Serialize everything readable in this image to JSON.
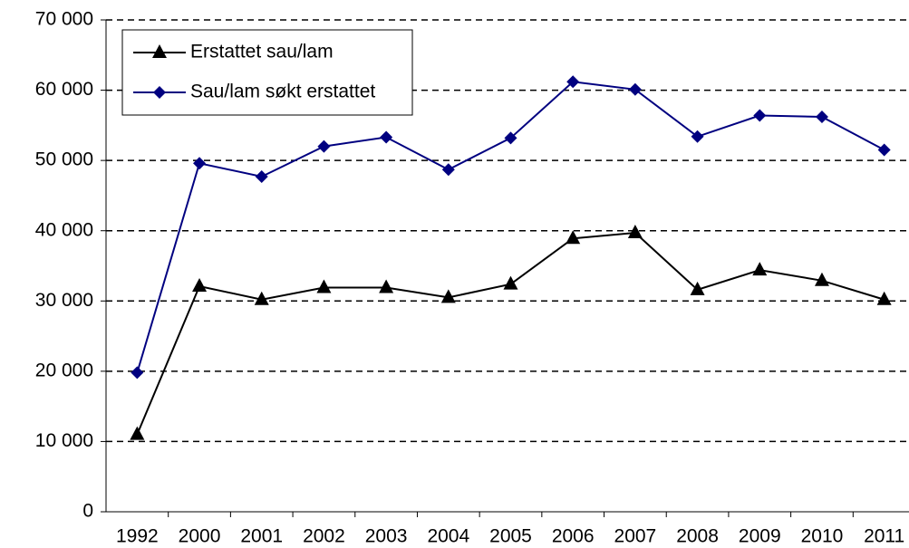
{
  "chart_data": {
    "type": "line",
    "categories": [
      "1992",
      "2000",
      "2001",
      "2002",
      "2003",
      "2004",
      "2005",
      "2006",
      "2007",
      "2008",
      "2009",
      "2010",
      "2011"
    ],
    "series": [
      {
        "name": "Erstattet sau/lam",
        "color": "#000000",
        "marker": "triangle",
        "values": [
          11000,
          32100,
          30200,
          31900,
          31900,
          30500,
          32400,
          38900,
          39700,
          31600,
          34400,
          32900,
          30200
        ]
      },
      {
        "name": "Sau/lam søkt erstattet",
        "color": "#000080",
        "marker": "diamond",
        "values": [
          19800,
          49600,
          47700,
          52000,
          53300,
          48700,
          53200,
          61200,
          60100,
          53400,
          56400,
          56200,
          51500
        ]
      }
    ],
    "ylim": [
      0,
      70000
    ],
    "yticks": [
      0,
      {
        "value": 10000,
        "label": "10 000"
      },
      {
        "value": 20000,
        "label": "20 000"
      },
      {
        "value": 30000,
        "label": "30 000"
      },
      {
        "value": 40000,
        "label": "40 000"
      },
      {
        "value": 50000,
        "label": "50 000"
      },
      {
        "value": 60000,
        "label": "60 000"
      },
      {
        "value": 70000,
        "label": "70 000"
      }
    ],
    "grid": true,
    "legend": "upper left"
  }
}
